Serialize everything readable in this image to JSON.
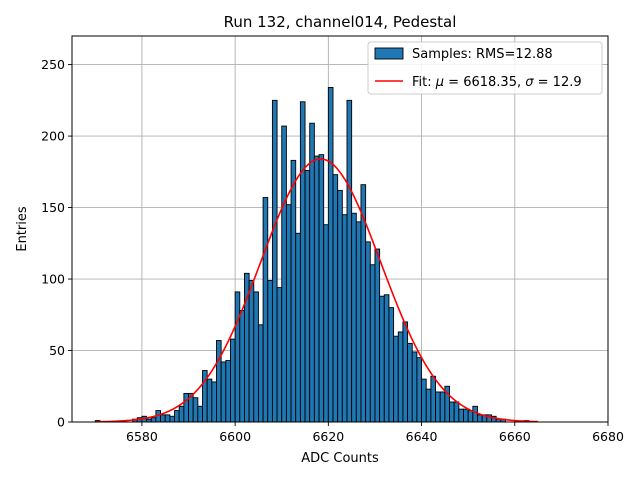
{
  "chart_data": {
    "type": "bar",
    "title": "Run 132, channel014, Pedestal",
    "xlabel": "ADC Counts",
    "ylabel": "Entries",
    "xlim": [
      6565,
      6680
    ],
    "ylim": [
      0,
      270
    ],
    "xticks": [
      6580,
      6600,
      6620,
      6640,
      6660,
      6680
    ],
    "yticks": [
      0,
      50,
      100,
      150,
      200,
      250
    ],
    "grid": true,
    "legend_position": "upper-right",
    "bar_color": "#1f77b4",
    "fit_color": "#ff0000",
    "histogram": {
      "label": "Samples: RMS=12.88",
      "x_start": 6570,
      "bin_width": 1,
      "counts": [
        1,
        0,
        0,
        0,
        0,
        0,
        0,
        0,
        2,
        3,
        4,
        2,
        3,
        8,
        5,
        5,
        4,
        8,
        11,
        20,
        20,
        17,
        11,
        36,
        30,
        28,
        57,
        42,
        43,
        58,
        91,
        78,
        104,
        99,
        91,
        68,
        157,
        99,
        225,
        94,
        207,
        152,
        183,
        132,
        224,
        176,
        209,
        186,
        187,
        138,
        234,
        173,
        162,
        145,
        225,
        146,
        140,
        166,
        126,
        110,
        121,
        88,
        89,
        80,
        60,
        63,
        70,
        55,
        49,
        45,
        30,
        23,
        32,
        21,
        21,
        25,
        14,
        14,
        9,
        9,
        8,
        11,
        5,
        5,
        5,
        4,
        2,
        2,
        0,
        0,
        0,
        0,
        1,
        0,
        0
      ]
    },
    "fit": {
      "label_prefix": "Fit: ",
      "mu_symbol": "μ",
      "mu_value": "6618.35",
      "sigma_symbol": "σ",
      "sigma_value": "12.9",
      "mu": 6618.35,
      "sigma": 12.9,
      "amplitude": 184,
      "x_range": [
        6570,
        6665
      ]
    }
  }
}
